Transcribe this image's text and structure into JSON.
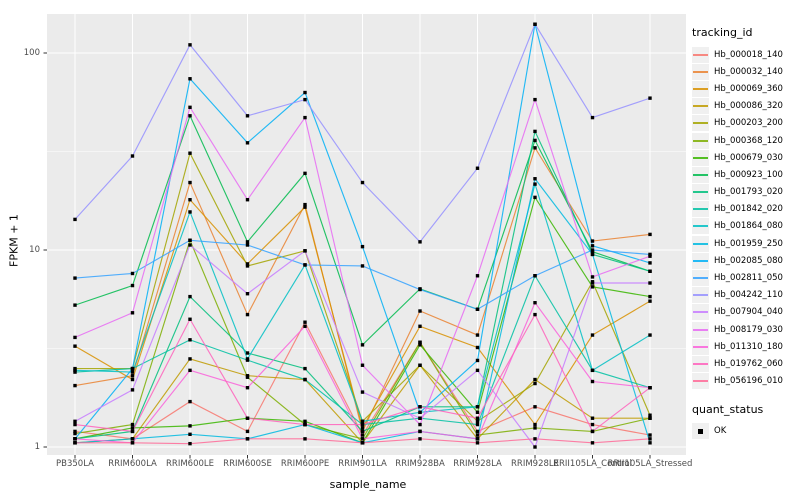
{
  "chart_data": {
    "type": "line",
    "title": "",
    "xlabel": "sample_name",
    "ylabel": "FPKM + 1",
    "yscale": "log10",
    "yticks": [
      "1",
      "10",
      "100"
    ],
    "ytick_values": [
      1,
      10,
      100
    ],
    "ylim": [
      0.85,
      160
    ],
    "grid": "white major and minor horizontal gridlines, vertical gridline per category, gray panel",
    "legend_position": "right",
    "categories": [
      "PB350LA",
      "RRIM600LA",
      "RRIM600LE",
      "RRIM600SE",
      "RRIM600PE",
      "RRIM901LA",
      "RRIM928BA",
      "RRIM928LA",
      "RRIM928LE",
      "RRII105LA_Control",
      "RRII105LA_Stressed"
    ],
    "series": [
      {
        "name": "Hb_000018_140",
        "color": "#F8766D",
        "values": [
          1.2,
          1.1,
          1.7,
          1.2,
          4.3,
          1.15,
          3.4,
          1.2,
          1.6,
          1.3,
          1.15
        ]
      },
      {
        "name": "Hb_000032_140",
        "color": "#EA8331",
        "values": [
          2.05,
          2.3,
          22.0,
          4.7,
          17.0,
          1.2,
          4.9,
          3.7,
          33.0,
          11.1,
          12.0
        ]
      },
      {
        "name": "Hb_000069_360",
        "color": "#D89000",
        "values": [
          3.25,
          2.2,
          18.0,
          8.5,
          16.5,
          1.25,
          4.1,
          3.2,
          1.3,
          3.7,
          5.5
        ]
      },
      {
        "name": "Hb_000086_320",
        "color": "#C09B00",
        "values": [
          1.05,
          1.1,
          2.8,
          2.3,
          2.2,
          1.05,
          2.6,
          1.1,
          2.2,
          1.4,
          1.4
        ]
      },
      {
        "name": "Hb_000203_200",
        "color": "#A3A500",
        "values": [
          2.5,
          2.5,
          31.0,
          8.3,
          9.9,
          1.35,
          2.6,
          1.35,
          2.1,
          6.9,
          1.45
        ]
      },
      {
        "name": "Hb_000368_120",
        "color": "#7CAE00",
        "values": [
          1.17,
          1.3,
          11.2,
          2.26,
          1.3,
          1.1,
          3.4,
          1.15,
          1.25,
          1.2,
          1.4
        ]
      },
      {
        "name": "Hb_000679_030",
        "color": "#39B600",
        "values": [
          1.1,
          1.25,
          1.28,
          1.4,
          1.35,
          1.05,
          3.3,
          1.5,
          18.5,
          6.5,
          5.8
        ]
      },
      {
        "name": "Hb_000923_100",
        "color": "#00BB4E",
        "values": [
          5.25,
          6.6,
          48.0,
          11.0,
          24.5,
          3.3,
          6.35,
          5.0,
          36.0,
          9.8,
          7.8
        ]
      },
      {
        "name": "Hb_001793_020",
        "color": "#00BF7D",
        "values": [
          1.1,
          1.2,
          5.8,
          3.0,
          2.5,
          1.2,
          1.6,
          1.6,
          40.0,
          9.5,
          7.8
        ]
      },
      {
        "name": "Hb_001842_020",
        "color": "#00C1A3",
        "values": [
          2.4,
          2.5,
          3.5,
          2.76,
          2.2,
          1.3,
          1.4,
          1.3,
          7.4,
          2.45,
          2.0
        ]
      },
      {
        "name": "Hb_001864_080",
        "color": "#00BFC4",
        "values": [
          2.45,
          2.4,
          15.6,
          2.8,
          8.4,
          1.35,
          1.5,
          1.6,
          21.6,
          2.45,
          3.7
        ]
      },
      {
        "name": "Hb_001959_250",
        "color": "#00BAE0",
        "values": [
          1.05,
          1.1,
          1.16,
          1.1,
          1.3,
          1.05,
          1.2,
          1.1,
          23.0,
          9.5,
          1.05
        ]
      },
      {
        "name": "Hb_002085_080",
        "color": "#00B0F6",
        "values": [
          1.1,
          2.5,
          74.0,
          35.0,
          63.0,
          10.4,
          1.5,
          2.75,
          140,
          10.5,
          8.6
        ]
      },
      {
        "name": "Hb_002811_050",
        "color": "#35A2FF",
        "values": [
          7.2,
          7.6,
          11.2,
          10.6,
          8.4,
          8.3,
          6.3,
          5.0,
          7.4,
          10.0,
          9.5
        ]
      },
      {
        "name": "Hb_004242_110",
        "color": "#9590FF",
        "values": [
          14.3,
          30.0,
          110,
          48.0,
          58.0,
          22.0,
          11.0,
          26.0,
          140,
          47.0,
          59.0
        ]
      },
      {
        "name": "Hb_007904_040",
        "color": "#C77CFF",
        "values": [
          1.35,
          1.95,
          10.6,
          6.0,
          9.9,
          1.9,
          1.4,
          2.45,
          1.0,
          6.8,
          6.8
        ]
      },
      {
        "name": "Hb_008179_030",
        "color": "#E76BF3",
        "values": [
          3.6,
          4.8,
          53.0,
          18.0,
          47.0,
          2.6,
          1.3,
          7.4,
          58.0,
          7.3,
          9.3
        ]
      },
      {
        "name": "Hb_011310_180",
        "color": "#FA62DB",
        "values": [
          1.1,
          1.05,
          2.45,
          2.0,
          4.1,
          1.1,
          1.2,
          1.1,
          5.4,
          2.15,
          2.0
        ]
      },
      {
        "name": "Hb_019762_060",
        "color": "#FF62BC",
        "values": [
          1.3,
          1.2,
          4.45,
          1.4,
          1.3,
          1.3,
          1.6,
          1.4,
          4.7,
          1.2,
          2.0
        ]
      },
      {
        "name": "Hb_056196_010",
        "color": "#FF6A98",
        "values": [
          1.05,
          1.05,
          1.04,
          1.1,
          1.1,
          1.05,
          1.1,
          1.05,
          1.1,
          1.05,
          1.1
        ]
      }
    ],
    "points": {
      "shape": "square",
      "color": "#000000"
    }
  },
  "axes": {
    "ylabel": "FPKM + 1",
    "xlabel": "sample_name"
  },
  "legend": {
    "tracking_title": "tracking_id",
    "quant_title": "quant_status",
    "quant_ok_label": "OK"
  },
  "style": {
    "panel_bg": "#EBEBEB",
    "grid_color": "#FFFFFF",
    "tick_label_color": "#4D4D4D",
    "tick_mark_color": "#333333",
    "legend_key_bg": "#F0F0F0",
    "point_color": "#000000"
  }
}
